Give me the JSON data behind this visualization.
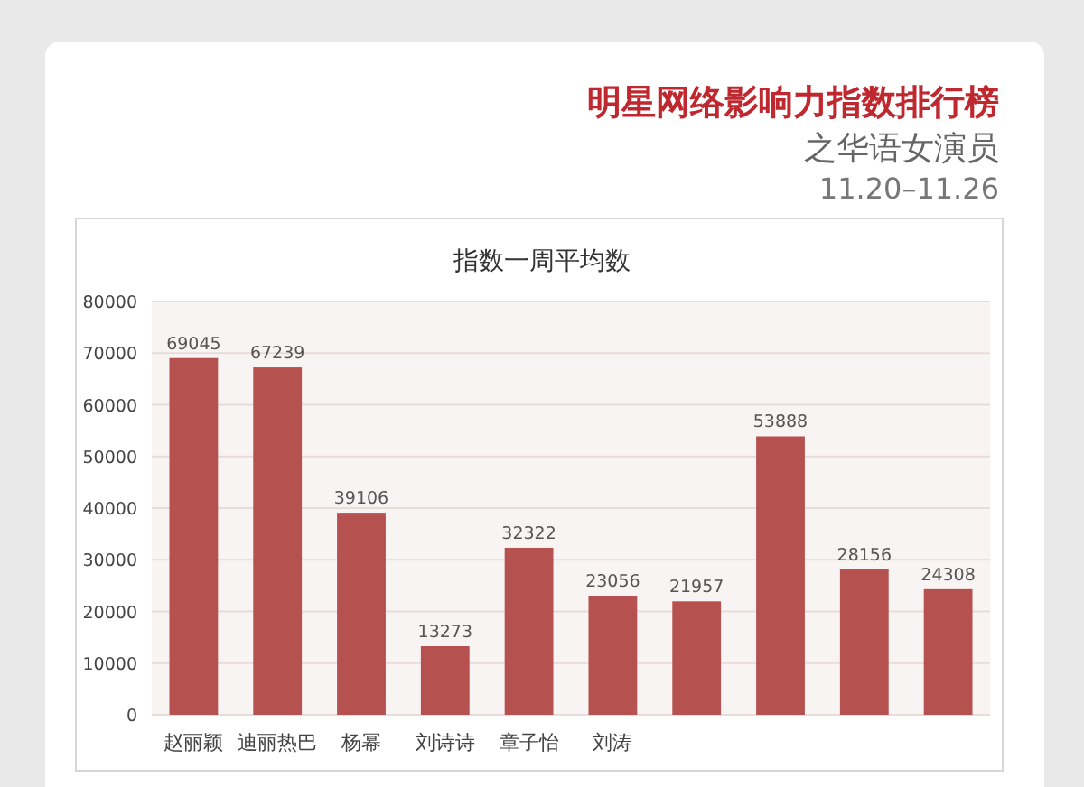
{
  "chart_data": {
    "type": "bar",
    "title": "明星网络影响力指数排行榜",
    "subtitle": "之华语女演员",
    "annotations": [
      "11.20–11.26",
      "指数一周平均数"
    ],
    "categories": [
      "赵丽颖",
      "迪丽热巴",
      "杨幂",
      "刘诗诗",
      "章子怡",
      "刘涛",
      null,
      null,
      null,
      null
    ],
    "values": [
      69045,
      67239,
      39106,
      13273,
      32322,
      23056,
      21957,
      53888,
      28156,
      24308
    ],
    "color": "#b5524f",
    "data_labels": true,
    "ylim": [
      0,
      80000
    ],
    "yticks": [
      0,
      10000,
      20000,
      30000,
      40000,
      50000,
      60000,
      70000,
      80000
    ],
    "grid": "y"
  }
}
